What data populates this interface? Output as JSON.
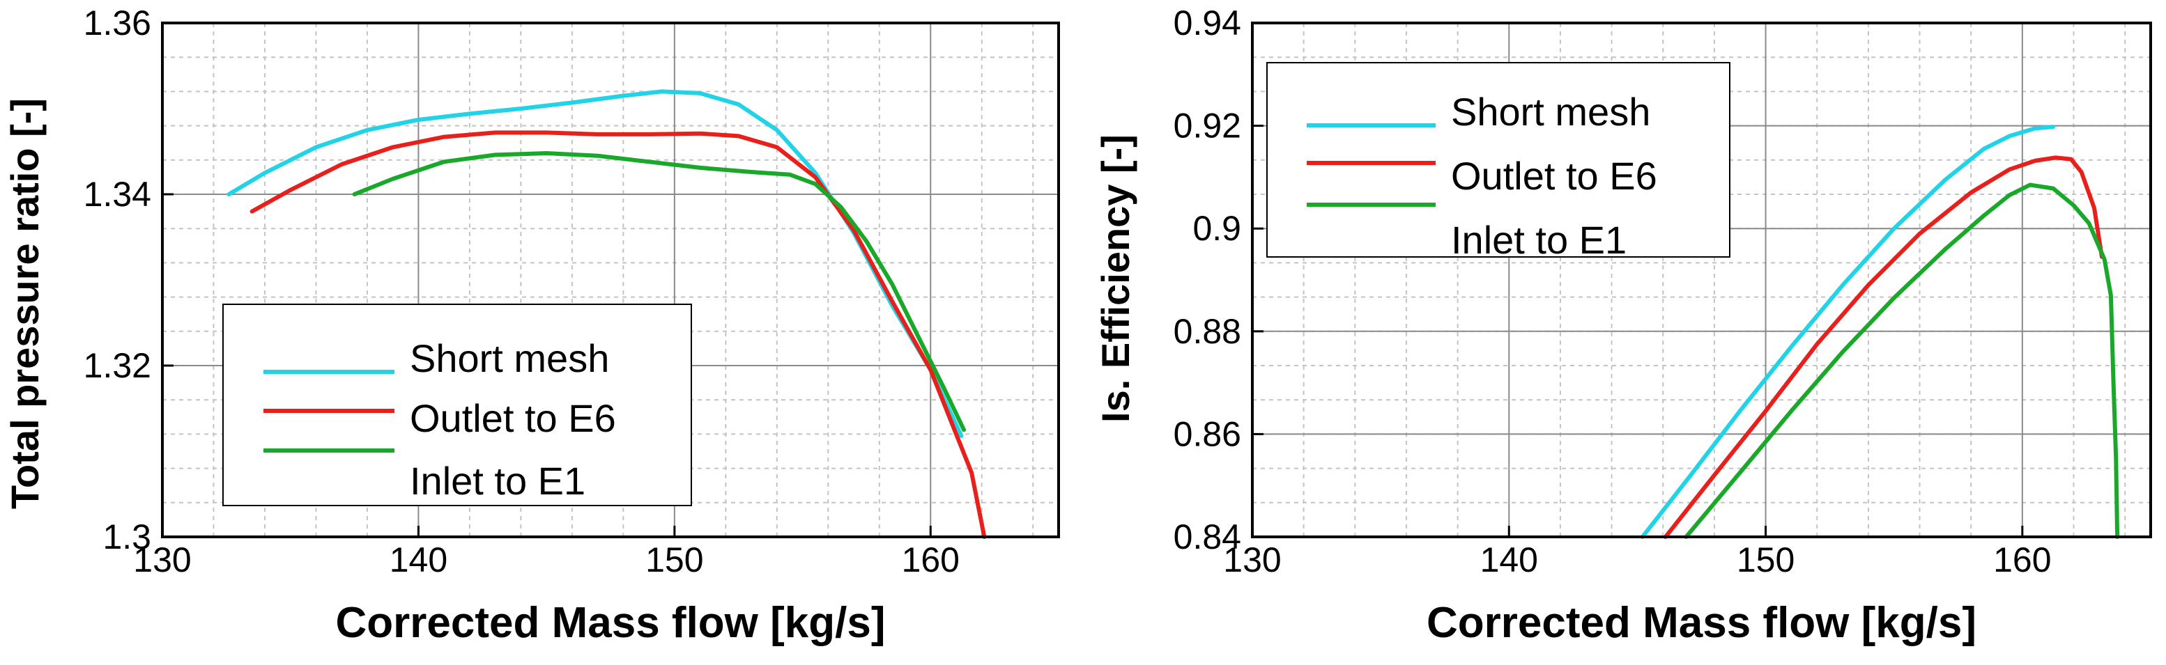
{
  "chart_data": [
    {
      "type": "line",
      "xlabel": "Corrected Mass flow [kg/s]",
      "ylabel": "Total pressure ratio [-]",
      "xlim": [
        130,
        165
      ],
      "ylim": [
        1.3,
        1.36
      ],
      "xticks": [
        130,
        140,
        150,
        160
      ],
      "xtick_labels": [
        "130",
        "140",
        "150",
        "160"
      ],
      "yticks": [
        1.3,
        1.32,
        1.34,
        1.36
      ],
      "ytick_labels": [
        "1.3",
        "1.32",
        "1.34",
        "1.36"
      ],
      "grid": true,
      "legend_position": "lower-left",
      "series": [
        {
          "name": "Short mesh",
          "color": "#22d3e8",
          "x": [
            132.6,
            134,
            136,
            138,
            140,
            142,
            144,
            146,
            148,
            149.5,
            151,
            152.5,
            154,
            155.5,
            157,
            158.5,
            160,
            161.2
          ],
          "y": [
            1.34,
            1.3425,
            1.3455,
            1.3475,
            1.3487,
            1.3494,
            1.35,
            1.3507,
            1.3515,
            1.352,
            1.3518,
            1.3505,
            1.3475,
            1.3425,
            1.3355,
            1.327,
            1.3195,
            1.3118
          ]
        },
        {
          "name": "Outlet to E6",
          "color": "#e8201c",
          "x": [
            133.5,
            135,
            137,
            139,
            141,
            143,
            145,
            147,
            149,
            151,
            152.5,
            154,
            155.5,
            157,
            158.5,
            160,
            161,
            161.6,
            162.1
          ],
          "y": [
            1.338,
            1.3405,
            1.3435,
            1.3455,
            1.3467,
            1.3472,
            1.3472,
            1.347,
            1.347,
            1.3471,
            1.3468,
            1.3455,
            1.342,
            1.3358,
            1.3275,
            1.3195,
            1.312,
            1.3075,
            1.3
          ]
        },
        {
          "name": "Inlet to E1",
          "color": "#1aa82a",
          "x": [
            137.5,
            139,
            141,
            143,
            145,
            147,
            149,
            151,
            153,
            154.5,
            155.5,
            156.5,
            157.5,
            158.5,
            159.5,
            160.5,
            161.3
          ],
          "y": [
            1.34,
            1.3418,
            1.3438,
            1.3446,
            1.3448,
            1.3445,
            1.3438,
            1.3431,
            1.3426,
            1.3423,
            1.3412,
            1.3385,
            1.3345,
            1.3295,
            1.3235,
            1.3175,
            1.3125
          ]
        }
      ]
    },
    {
      "type": "line",
      "xlabel": "Corrected Mass flow [kg/s]",
      "ylabel": "Is. Efficiency [-]",
      "xlim": [
        130,
        165
      ],
      "ylim": [
        0.84,
        0.94
      ],
      "xticks": [
        130,
        140,
        150,
        160
      ],
      "xtick_labels": [
        "130",
        "140",
        "150",
        "160"
      ],
      "yticks": [
        0.84,
        0.86,
        0.88,
        0.9,
        0.92,
        0.94
      ],
      "ytick_labels": [
        "0.84",
        "0.86",
        "0.88",
        "0.9",
        "0.92",
        "0.94"
      ],
      "grid": true,
      "legend_position": "upper-left",
      "series": [
        {
          "name": "Short mesh",
          "color": "#22d3e8",
          "x": [
            145.2,
            147,
            149,
            151,
            153,
            155,
            157,
            158.5,
            159.5,
            160.5,
            161.2
          ],
          "y": [
            0.84,
            0.8515,
            0.8645,
            0.877,
            0.889,
            0.9,
            0.9095,
            0.9155,
            0.918,
            0.9195,
            0.9198
          ]
        },
        {
          "name": "Outlet to E6",
          "color": "#e8201c",
          "x": [
            146.1,
            148,
            150,
            152,
            154,
            156,
            158,
            159.5,
            160.5,
            161.3,
            161.9,
            162.3,
            162.8,
            163.1
          ],
          "y": [
            0.84,
            0.852,
            0.8645,
            0.8775,
            0.889,
            0.899,
            0.907,
            0.9115,
            0.9132,
            0.9138,
            0.9135,
            0.911,
            0.904,
            0.8945
          ]
        },
        {
          "name": "Inlet to E1",
          "color": "#1aa82a",
          "x": [
            146.9,
            149,
            151,
            153,
            155,
            157,
            158.5,
            159.5,
            160.3,
            161.2,
            162,
            162.6,
            163.2,
            163.45,
            163.55,
            163.65,
            163.7
          ],
          "y": [
            0.84,
            0.8525,
            0.8645,
            0.876,
            0.8865,
            0.896,
            0.9025,
            0.9065,
            0.9085,
            0.9078,
            0.9045,
            0.901,
            0.894,
            0.887,
            0.87,
            0.855,
            0.84
          ]
        }
      ]
    }
  ]
}
